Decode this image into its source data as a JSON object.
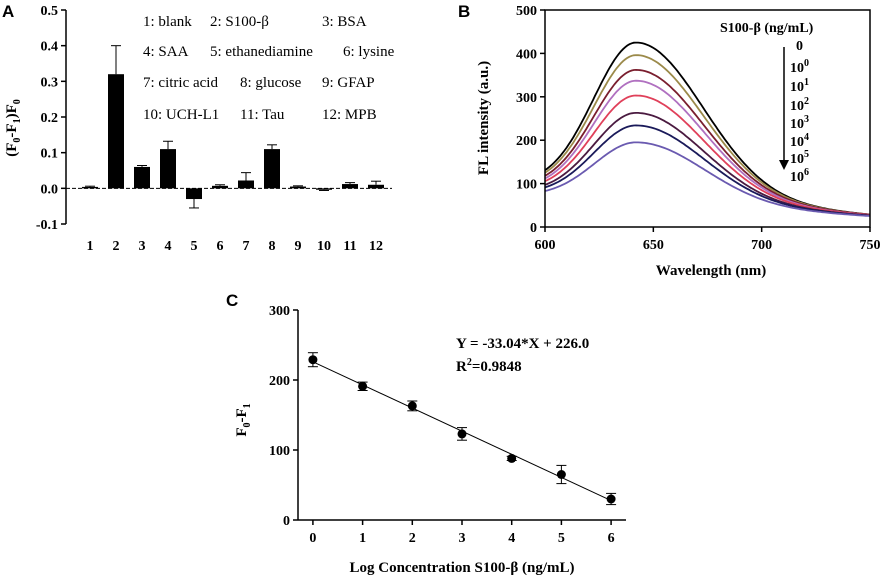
{
  "chart_data": [
    {
      "panel": "A",
      "type": "bar",
      "ylabel_parts": [
        "(F",
        "0",
        "-F",
        "1",
        ")F",
        "0"
      ],
      "ylim": [
        -0.1,
        0.5
      ],
      "yticks": [
        -0.1,
        0.0,
        0.1,
        0.2,
        0.3,
        0.4,
        0.5
      ],
      "ytick_labels": [
        "-0.1",
        "0.0",
        "0.1",
        "0.2",
        "0.3",
        "0.4",
        "0.5"
      ],
      "categories": [
        "1",
        "2",
        "3",
        "4",
        "5",
        "6",
        "7",
        "8",
        "9",
        "10",
        "11",
        "12"
      ],
      "values": [
        0.004,
        0.32,
        0.06,
        0.11,
        -0.03,
        0.007,
        0.022,
        0.11,
        0.005,
        -0.004,
        0.012,
        0.01
      ],
      "errors": [
        0.002,
        0.08,
        0.004,
        0.022,
        0.025,
        0.003,
        0.022,
        0.012,
        0.002,
        0.002,
        0.004,
        0.01
      ],
      "legend_rows": [
        [
          "1: blank",
          "2: S100-β",
          "3: BSA"
        ],
        [
          "4: SAA",
          "5: ethanediamine",
          "6: lysine"
        ],
        [
          "7: citric acid",
          "8: glucose",
          "9: GFAP"
        ],
        [
          "10: UCH-L1",
          "11: Tau",
          "12: MPB"
        ]
      ]
    },
    {
      "panel": "B",
      "type": "line",
      "xlabel": "Wavelength (nm)",
      "ylabel": "FL intensity (a.u.)",
      "xlim": [
        600,
        750
      ],
      "ylim": [
        0,
        500
      ],
      "xticks": [
        600,
        650,
        700,
        750
      ],
      "yticks": [
        0,
        100,
        200,
        300,
        400,
        500
      ],
      "legend_title": "S100-β (ng/mL)",
      "legend_labels": [
        {
          "base": "0",
          "exp": ""
        },
        {
          "base": "10",
          "exp": "0"
        },
        {
          "base": "10",
          "exp": "1"
        },
        {
          "base": "10",
          "exp": "2"
        },
        {
          "base": "10",
          "exp": "3"
        },
        {
          "base": "10",
          "exp": "4"
        },
        {
          "base": "10",
          "exp": "5"
        },
        {
          "base": "10",
          "exp": "6"
        }
      ],
      "series": [
        {
          "name": "0",
          "peak_x": 642,
          "peak": 425,
          "start": 126,
          "end": 28,
          "color": "#000000"
        },
        {
          "name": "10^0",
          "peak_x": 642,
          "peak": 396,
          "start": 122,
          "end": 28,
          "color": "#9b8a4a"
        },
        {
          "name": "10^1",
          "peak_x": 642,
          "peak": 362,
          "start": 117,
          "end": 28,
          "color": "#7a1e2e"
        },
        {
          "name": "10^2",
          "peak_x": 642,
          "peak": 337,
          "start": 112,
          "end": 27,
          "color": "#b070c0"
        },
        {
          "name": "10^3",
          "peak_x": 642,
          "peak": 303,
          "start": 108,
          "end": 27,
          "color": "#e0405a"
        },
        {
          "name": "10^4",
          "peak_x": 642,
          "peak": 263,
          "start": 102,
          "end": 26,
          "color": "#4a1a40"
        },
        {
          "name": "10^5",
          "peak_x": 642,
          "peak": 234,
          "start": 98,
          "end": 26,
          "color": "#1a1a5a"
        },
        {
          "name": "10^6",
          "peak_x": 642,
          "peak": 195,
          "start": 92,
          "end": 25,
          "color": "#6a5ab0"
        }
      ]
    },
    {
      "panel": "C",
      "type": "scatter",
      "xlabel": "Log Concentration S100-β (ng/mL)",
      "ylabel_parts": [
        "F",
        "0",
        "-F",
        "1"
      ],
      "xlim": [
        -0.3,
        6.3
      ],
      "ylim": [
        0,
        300
      ],
      "xticks": [
        0,
        1,
        2,
        3,
        4,
        5,
        6
      ],
      "yticks": [
        0,
        100,
        200,
        300
      ],
      "x": [
        0,
        1,
        2,
        3,
        4,
        5,
        6
      ],
      "y": [
        229,
        191,
        163,
        123,
        88,
        65,
        30
      ],
      "errors": [
        10,
        6,
        7,
        9,
        3,
        13,
        8
      ],
      "fit": {
        "slope": -33.04,
        "intercept": 226.0
      },
      "equation": "Y = -33.04*X + 226.0",
      "r2_base": "R",
      "r2_exp": "2",
      "r2_value": "=0.9848"
    }
  ],
  "panels": {
    "a": "A",
    "b": "B",
    "c": "C"
  }
}
